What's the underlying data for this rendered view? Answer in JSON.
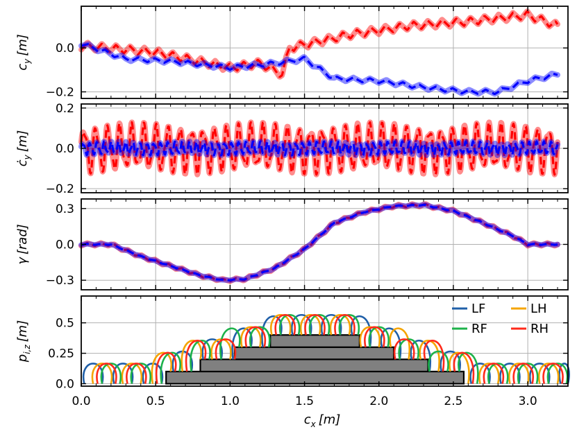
{
  "chart_data": {
    "type": "line",
    "x_axis": {
      "label_var": "c",
      "label_sub": "x",
      "label_unit": "[m]",
      "range": [
        0.0,
        3.27
      ],
      "ticks": [
        0.0,
        0.5,
        1.0,
        1.5,
        2.0,
        2.5,
        3.0
      ],
      "tick_labels": [
        "0.0",
        "0.5",
        "1.0",
        "1.5",
        "2.0",
        "2.5",
        "3.0"
      ]
    },
    "panels": [
      {
        "id": "cy",
        "ylabel_var": "c",
        "ylabel_sub": "y",
        "ylabel_unit": "[m]",
        "ylim": [
          -0.23,
          0.19
        ],
        "ticks": [
          -0.2,
          0.0
        ],
        "tick_labels": [
          "−0.2",
          "0.0"
        ],
        "series": [
          {
            "name": "red",
            "color": "#ff0000",
            "amp": 0.018,
            "freq": 10.5,
            "points": [
              [
                0.0,
                0.01
              ],
              [
                0.5,
                -0.02
              ],
              [
                1.0,
                -0.09
              ],
              [
                1.2,
                -0.07
              ],
              [
                1.35,
                -0.12
              ],
              [
                1.4,
                0.0
              ],
              [
                1.8,
                0.06
              ],
              [
                2.2,
                0.1
              ],
              [
                2.6,
                0.12
              ],
              [
                3.0,
                0.15
              ],
              [
                3.2,
                0.1
              ]
            ]
          },
          {
            "name": "blue",
            "color": "#0000ff",
            "amp": 0.01,
            "freq": 9,
            "points": [
              [
                0.0,
                0.02
              ],
              [
                0.3,
                -0.05
              ],
              [
                0.6,
                -0.06
              ],
              [
                1.0,
                -0.09
              ],
              [
                1.3,
                -0.07
              ],
              [
                1.5,
                -0.05
              ],
              [
                1.7,
                -0.14
              ],
              [
                2.0,
                -0.15
              ],
              [
                2.3,
                -0.18
              ],
              [
                2.6,
                -0.2
              ],
              [
                2.8,
                -0.2
              ],
              [
                3.0,
                -0.15
              ],
              [
                3.2,
                -0.12
              ]
            ]
          }
        ]
      },
      {
        "id": "cydot",
        "ylabel_var": "ċ",
        "ylabel_sub": "y",
        "ylabel_unit": "[m]",
        "ylim": [
          -0.22,
          0.22
        ],
        "ticks": [
          -0.2,
          0.0,
          0.2
        ],
        "tick_labels": [
          "−0.2",
          "0.0",
          "0.2"
        ],
        "series": [
          {
            "name": "red",
            "color": "#ff0000",
            "amp": 0.13,
            "freq": 12.5,
            "points": [
              [
                0.0,
                0.0
              ],
              [
                3.2,
                0.0
              ]
            ]
          },
          {
            "name": "blue",
            "color": "#0000ff",
            "amp": 0.035,
            "freq": 21,
            "points": [
              [
                0.0,
                0.0
              ],
              [
                3.2,
                0.0
              ]
            ]
          }
        ]
      },
      {
        "id": "gamma",
        "ylabel_var": "γ",
        "ylabel_sub": "",
        "ylabel_unit": "[rad]",
        "ylim": [
          -0.38,
          0.38
        ],
        "ticks": [
          -0.3,
          0.0,
          0.3
        ],
        "tick_labels": [
          "−0.3",
          "0.0",
          "0.3"
        ],
        "series": [
          {
            "name": "red",
            "color": "#ff0000",
            "amp": 0.012,
            "freq": 11,
            "points": [
              [
                0.0,
                0.0
              ],
              [
                0.2,
                0.0
              ],
              [
                0.4,
                -0.1
              ],
              [
                0.6,
                -0.18
              ],
              [
                0.8,
                -0.26
              ],
              [
                0.95,
                -0.3
              ],
              [
                1.1,
                -0.29
              ],
              [
                1.3,
                -0.2
              ],
              [
                1.5,
                -0.04
              ],
              [
                1.7,
                0.18
              ],
              [
                1.9,
                0.27
              ],
              [
                2.1,
                0.32
              ],
              [
                2.3,
                0.33
              ],
              [
                2.5,
                0.28
              ],
              [
                2.7,
                0.18
              ],
              [
                2.9,
                0.07
              ],
              [
                3.0,
                0.0
              ],
              [
                3.2,
                0.0
              ]
            ]
          },
          {
            "name": "blue",
            "color": "#0000ff",
            "amp": 0.004,
            "freq": 11,
            "points": [
              [
                0.0,
                0.0
              ],
              [
                0.2,
                0.0
              ],
              [
                0.4,
                -0.1
              ],
              [
                0.6,
                -0.18
              ],
              [
                0.8,
                -0.26
              ],
              [
                0.95,
                -0.3
              ],
              [
                1.1,
                -0.29
              ],
              [
                1.3,
                -0.2
              ],
              [
                1.5,
                -0.04
              ],
              [
                1.7,
                0.18
              ],
              [
                1.9,
                0.27
              ],
              [
                2.1,
                0.32
              ],
              [
                2.3,
                0.33
              ],
              [
                2.5,
                0.28
              ],
              [
                2.7,
                0.18
              ],
              [
                2.9,
                0.07
              ],
              [
                3.0,
                0.0
              ],
              [
                3.2,
                0.0
              ]
            ]
          }
        ]
      },
      {
        "id": "foot",
        "ylabel_var": "p",
        "ylabel_sub": "i,z",
        "ylabel_unit": "[m]",
        "ylim": [
          -0.02,
          0.72
        ],
        "ticks": [
          0.0,
          0.25,
          0.5
        ],
        "tick_labels": [
          "0.0",
          "0.25",
          "0.5"
        ],
        "stairs": [
          {
            "x0": 0.57,
            "x1": 2.57,
            "y0": 0.0,
            "y1": 0.1
          },
          {
            "x0": 0.8,
            "x1": 2.33,
            "y0": 0.1,
            "y1": 0.2
          },
          {
            "x0": 1.03,
            "x1": 2.1,
            "y0": 0.2,
            "y1": 0.3
          },
          {
            "x0": 1.27,
            "x1": 1.87,
            "y0": 0.3,
            "y1": 0.4
          }
        ],
        "legend": [
          {
            "name": "LF",
            "color": "#1f5fa8"
          },
          {
            "name": "LH",
            "color": "#f5a400"
          },
          {
            "name": "RF",
            "color": "#1db24a"
          },
          {
            "name": "RH",
            "color": "#ff2a1a"
          }
        ],
        "feet": [
          {
            "name": "LF",
            "color": "#1f5fa8",
            "offset": 0.02
          },
          {
            "name": "LH",
            "color": "#f5a400",
            "offset": 0.08
          },
          {
            "name": "RF",
            "color": "#1db24a",
            "offset": 0.14
          },
          {
            "name": "RH",
            "color": "#ff2a1a",
            "offset": 0.11
          }
        ],
        "step_length": 0.2,
        "swing_length": 0.12,
        "swing_height": 0.15
      }
    ]
  }
}
